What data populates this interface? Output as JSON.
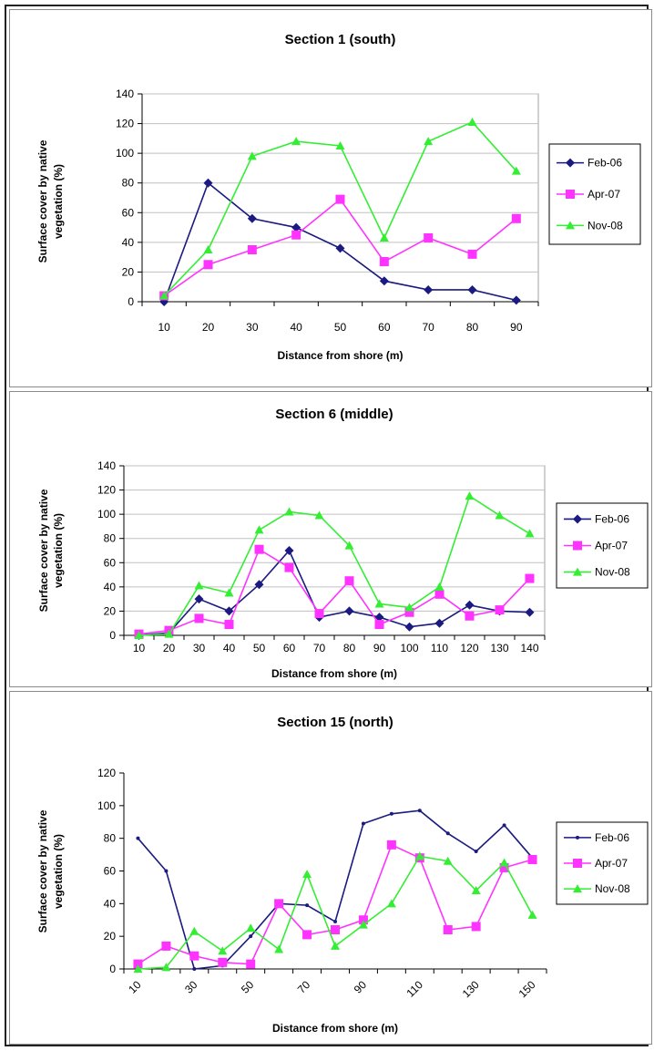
{
  "colors": {
    "series": [
      "#1a1a80",
      "#ff33ff",
      "#33ee33"
    ],
    "grid": "#c0c0c0",
    "plot_bg": "#ffffff",
    "axis": "#808080"
  },
  "chart_data": [
    {
      "type": "line",
      "title": "Section 1 (south)",
      "xlabel": "Distance from shore (m)",
      "ylabel": "Surface cover by native vegetation (%)",
      "ylabel_lines": [
        "Surface cover by native",
        "vegetation (%)"
      ],
      "categories": [
        "10",
        "20",
        "30",
        "40",
        "50",
        "60",
        "70",
        "80",
        "90"
      ],
      "ylim": [
        0,
        140
      ],
      "yticks": [
        0,
        20,
        40,
        60,
        80,
        100,
        120,
        140
      ],
      "grid": true,
      "legend": "right",
      "series": [
        {
          "name": "Feb-06",
          "marker": "diamond",
          "values": [
            0,
            80,
            56,
            50,
            36,
            14,
            8,
            8,
            1
          ]
        },
        {
          "name": "Apr-07",
          "marker": "square",
          "values": [
            4,
            25,
            35,
            45,
            69,
            27,
            43,
            32,
            56
          ]
        },
        {
          "name": "Nov-08",
          "marker": "triangle",
          "values": [
            4,
            35,
            98,
            108,
            105,
            43,
            108,
            121,
            88
          ]
        }
      ]
    },
    {
      "type": "line",
      "title": "Section 6 (middle)",
      "xlabel": "Distance from shore (m)",
      "ylabel": "Surface cover by native vegetation (%)",
      "ylabel_lines": [
        "Surface cover by native",
        "vegetation (%)"
      ],
      "categories": [
        "10",
        "20",
        "30",
        "40",
        "50",
        "60",
        "70",
        "80",
        "90",
        "100",
        "110",
        "120",
        "130",
        "140"
      ],
      "ylim": [
        0,
        140
      ],
      "yticks": [
        0,
        20,
        40,
        60,
        80,
        100,
        120,
        140
      ],
      "grid": true,
      "legend": "right",
      "series": [
        {
          "name": "Feb-06",
          "marker": "diamond",
          "values": [
            0,
            2,
            30,
            20,
            42,
            70,
            15,
            20,
            15,
            7,
            10,
            25,
            20,
            19
          ]
        },
        {
          "name": "Apr-07",
          "marker": "square",
          "values": [
            1,
            4,
            14,
            9,
            71,
            56,
            18,
            45,
            9,
            19,
            34,
            16,
            21,
            47
          ]
        },
        {
          "name": "Nov-08",
          "marker": "triangle",
          "values": [
            0,
            1,
            41,
            35,
            87,
            102,
            99,
            74,
            26,
            23,
            40,
            115,
            99,
            84
          ]
        }
      ]
    },
    {
      "type": "line",
      "title": "Section 15 (north)",
      "xlabel": "Distance from shore (m)",
      "ylabel": "Surface cover by native vegetation (%)",
      "ylabel_lines": [
        "Surface cover by native",
        "vegetation (%)"
      ],
      "categories": [
        "10",
        "20",
        "30",
        "40",
        "50",
        "60",
        "70",
        "80",
        "90",
        "100",
        "110",
        "120",
        "130",
        "140",
        "150"
      ],
      "xtick_labels": [
        "10",
        "",
        "30",
        "",
        "50",
        "",
        "70",
        "",
        "90",
        "",
        "110",
        "",
        "130",
        "",
        "150"
      ],
      "xtick_rotation": -45,
      "ylim": [
        0,
        120
      ],
      "yticks": [
        0,
        20,
        40,
        60,
        80,
        100,
        120
      ],
      "grid": false,
      "legend": "right",
      "series": [
        {
          "name": "Feb-06",
          "marker": "dot",
          "values": [
            80,
            60,
            0,
            2,
            20,
            40,
            39,
            29,
            89,
            95,
            97,
            83,
            72,
            88,
            68
          ]
        },
        {
          "name": "Apr-07",
          "marker": "square",
          "values": [
            3,
            14,
            8,
            4,
            3,
            40,
            21,
            24,
            30,
            76,
            68,
            24,
            26,
            62,
            67
          ]
        },
        {
          "name": "Nov-08",
          "marker": "triangle",
          "values": [
            0,
            1,
            23,
            11,
            25,
            12,
            58,
            14,
            27,
            40,
            69,
            66,
            48,
            65,
            33
          ]
        }
      ]
    }
  ]
}
